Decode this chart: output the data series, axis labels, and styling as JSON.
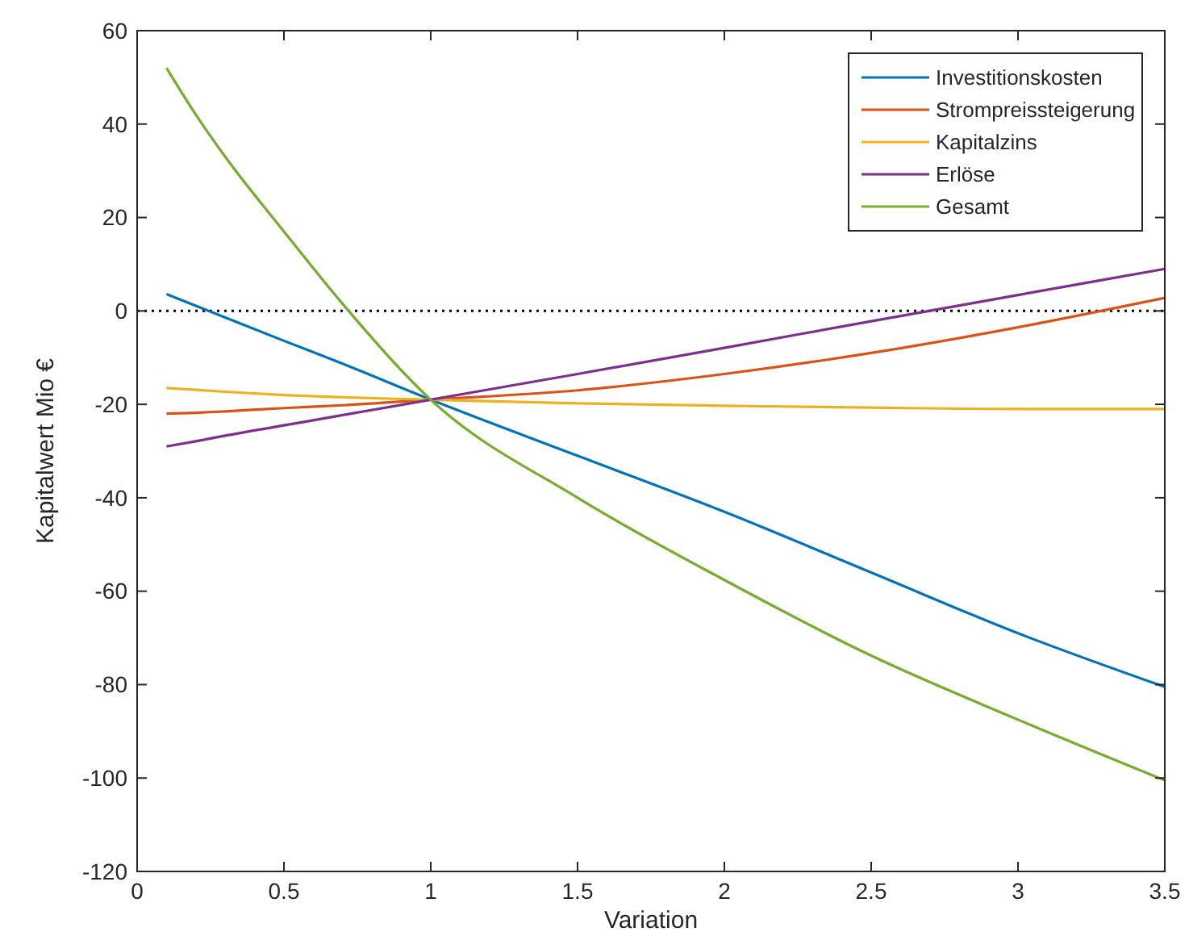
{
  "chart_data": {
    "type": "line",
    "xlabel": "Variation",
    "ylabel": "Kapitalwert Mio €",
    "x": [
      0.1,
      0.2,
      0.3,
      0.5,
      0.7,
      1,
      1.5,
      2,
      2.5,
      3,
      3.5
    ],
    "series": [
      {
        "name": "Investitionskosten",
        "color": "#0072bd",
        "values": [
          3.6,
          1.1,
          -1.4,
          -6.4,
          -11.3,
          -19,
          -31,
          -43,
          -56,
          -69,
          -80.5
        ]
      },
      {
        "name": "Strompreissteigerung",
        "color": "#d95319",
        "values": [
          -22,
          -21.8,
          -21.5,
          -20.8,
          -20.2,
          -19,
          -17,
          -13.5,
          -9,
          -3.5,
          2.8
        ]
      },
      {
        "name": "Kapitalzins",
        "color": "#edb120",
        "values": [
          -16.5,
          -16.9,
          -17.3,
          -18,
          -18.5,
          -19,
          -19.8,
          -20.3,
          -20.7,
          -21,
          -21
        ]
      },
      {
        "name": "Erlöse",
        "color": "#7e2f8e",
        "values": [
          -29,
          -27.9,
          -26.7,
          -24.5,
          -22.3,
          -19,
          -13.5,
          -7.9,
          -2.2,
          3.4,
          9
        ]
      },
      {
        "name": "Gesamt",
        "color": "#77ac30",
        "values": [
          52,
          42,
          33,
          17,
          1.5,
          -19,
          -40,
          -57.6,
          -73.8,
          -87.5,
          -100.5
        ]
      }
    ],
    "xlim": [
      0,
      3.5
    ],
    "xticks": [
      0,
      0.5,
      1,
      1.5,
      2,
      2.5,
      3,
      3.5
    ],
    "ylim": [
      -120,
      60
    ],
    "yticks": [
      -120,
      -100,
      -80,
      -60,
      -40,
      -20,
      0,
      20,
      40,
      60
    ],
    "ref_lines": [
      {
        "axis": "y",
        "value": 0,
        "color": "#000000",
        "line_style": "dotted"
      }
    ],
    "legend": "top right",
    "grid": false,
    "marker": "none",
    "line_style": "solid"
  }
}
